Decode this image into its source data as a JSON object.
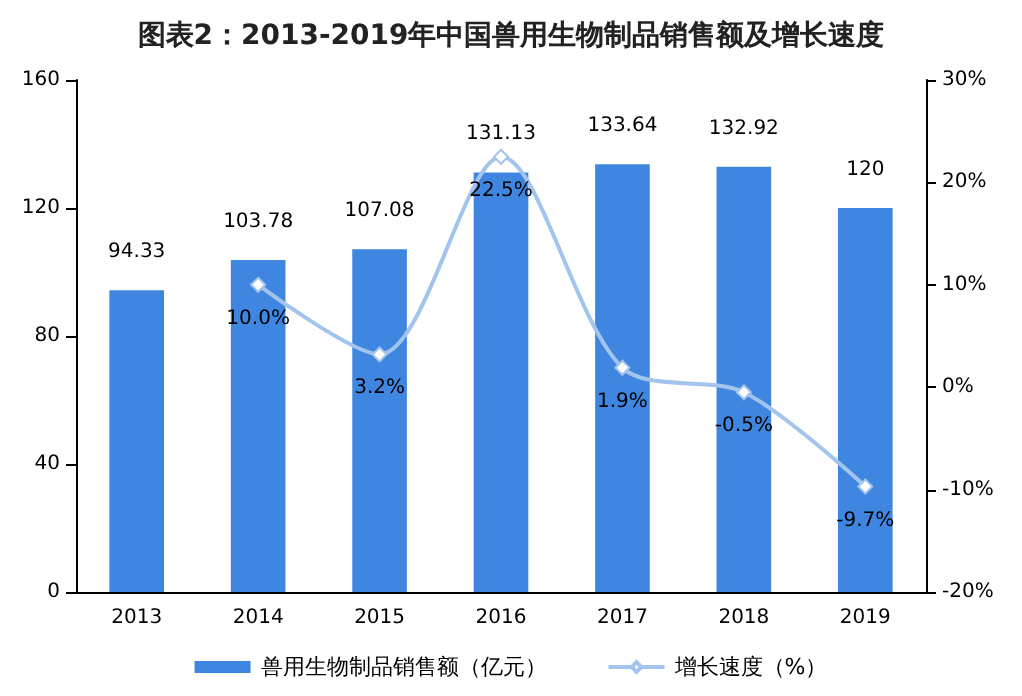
{
  "chart_data": {
    "type": "bar",
    "title": "图表2：2013-2019年中国兽用生物制品销售额及增长速度",
    "categories": [
      "2013",
      "2014",
      "2015",
      "2016",
      "2017",
      "2018",
      "2019"
    ],
    "series": [
      {
        "name": "兽用生物制品销售额（亿元）",
        "color": "#3f86e0",
        "values": [
          94.33,
          103.78,
          107.08,
          131.13,
          133.64,
          132.92,
          120
        ],
        "data_labels": true
      },
      {
        "type": "line",
        "name": "增长速度（%）",
        "color": "#a3c4ec",
        "axis": "y2",
        "marker": "diamond",
        "values": [
          null,
          10.0,
          3.2,
          22.5,
          1.9,
          -0.5,
          -9.7
        ],
        "value_labels": [
          null,
          "10.0%",
          "3.2%",
          "22.5%",
          "1.9%",
          "-0.5%",
          "-9.7%"
        ]
      }
    ],
    "ylim": [
      0,
      160
    ],
    "yticks": [
      0,
      40,
      80,
      120,
      160
    ],
    "y2lim": [
      -20,
      30
    ],
    "y2ticks": [
      {
        "value": -20,
        "label": "-20%"
      },
      {
        "value": -10,
        "label": "-10%"
      },
      {
        "value": 0,
        "label": "0%"
      },
      {
        "value": 10,
        "label": "10%"
      },
      {
        "value": 20,
        "label": "20%"
      },
      {
        "value": 30,
        "label": "30%"
      }
    ],
    "grid": false,
    "legend": "bottom"
  }
}
